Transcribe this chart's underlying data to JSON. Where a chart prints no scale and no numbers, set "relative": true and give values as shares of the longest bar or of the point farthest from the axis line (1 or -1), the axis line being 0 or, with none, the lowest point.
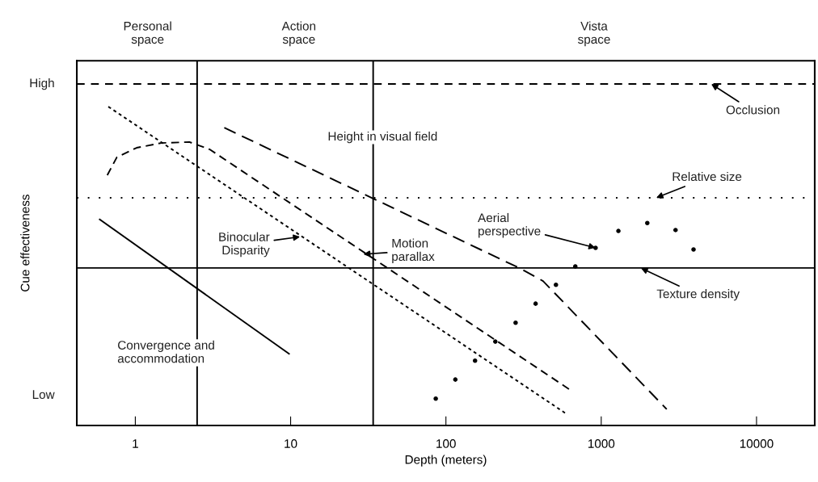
{
  "chart_data": {
    "type": "line",
    "xlabel": "Depth (meters)",
    "ylabel": "Cue effectiveness",
    "log": "x",
    "xlim": [
      0.42,
      23700
    ],
    "xticks": [
      1,
      10,
      100,
      1000,
      10000
    ],
    "relative": true,
    "grid": false,
    "legend": false,
    "series": [
      {
        "color": "#000000",
        "line_style": "solid",
        "marker": "none",
        "x": [
          0.59,
          9.77
        ],
        "values": [
          0.646,
          0.225
        ]
      },
      {
        "color": "#000000",
        "line_style": "dashed",
        "marker": "none",
        "x": [
          0.67,
          590
        ],
        "values": [
          1.0,
          0.038
        ]
      },
      {
        "color": "#000000",
        "line_style": "dashed",
        "marker": "none",
        "x": [
          0.66,
          0.76,
          1.02,
          1.47,
          2.23,
          3.01,
          620
        ],
        "values": [
          0.785,
          0.841,
          0.871,
          0.886,
          0.889,
          0.866,
          0.114
        ]
      },
      {
        "color": "#000000",
        "line_style": "dashed",
        "marker": "none",
        "x": [
          3.74,
          305,
          422,
          2640
        ],
        "values": [
          0.934,
          0.491,
          0.453,
          0.051
        ]
      },
      {
        "type": "scatter",
        "color": "#000000",
        "marker": "circle",
        "x": [
          86,
          115,
          154,
          208,
          281,
          378,
          511,
          681,
          920,
          1290,
          1980,
          3010,
          3930
        ],
        "values": [
          0.084,
          0.144,
          0.203,
          0.263,
          0.322,
          0.382,
          0.441,
          0.499,
          0.557,
          0.61,
          0.635,
          0.613,
          0.552
        ]
      }
    ],
    "ref_lines": [
      {
        "axis": "y",
        "value": 1.071,
        "line_style": "dashed",
        "color": "#000000"
      },
      {
        "axis": "y",
        "value": 0.714,
        "line_style": "dotted",
        "color": "#000000"
      },
      {
        "axis": "y",
        "value": 0.494,
        "line_style": "solid",
        "color": "#000000"
      },
      {
        "axis": "x",
        "value": 2.5,
        "line_style": "solid",
        "color": "#000000"
      },
      {
        "axis": "x",
        "value": 34,
        "line_style": "solid",
        "color": "#000000"
      }
    ],
    "annotations": [
      "Personal\nspace",
      "Action\nspace",
      "Vista\nspace",
      "High",
      "Low",
      "Height in visual field",
      "Convergence and\naccommodation",
      {
        "text": "Binocular\nDisparity",
        "x": 11.5,
        "y": 0.592
      },
      {
        "text": "Motion\nparallax",
        "x": 29.4,
        "y": 0.537
      },
      {
        "text": "Aerial\nperspective",
        "x": 920,
        "y": 0.557
      },
      {
        "text": "Occlusion",
        "x": 5110,
        "y": 1.071
      },
      {
        "text": "Relative size",
        "x": 2260,
        "y": 0.714
      },
      {
        "text": "Texture density",
        "x": 1800,
        "y": 0.494
      }
    ]
  }
}
